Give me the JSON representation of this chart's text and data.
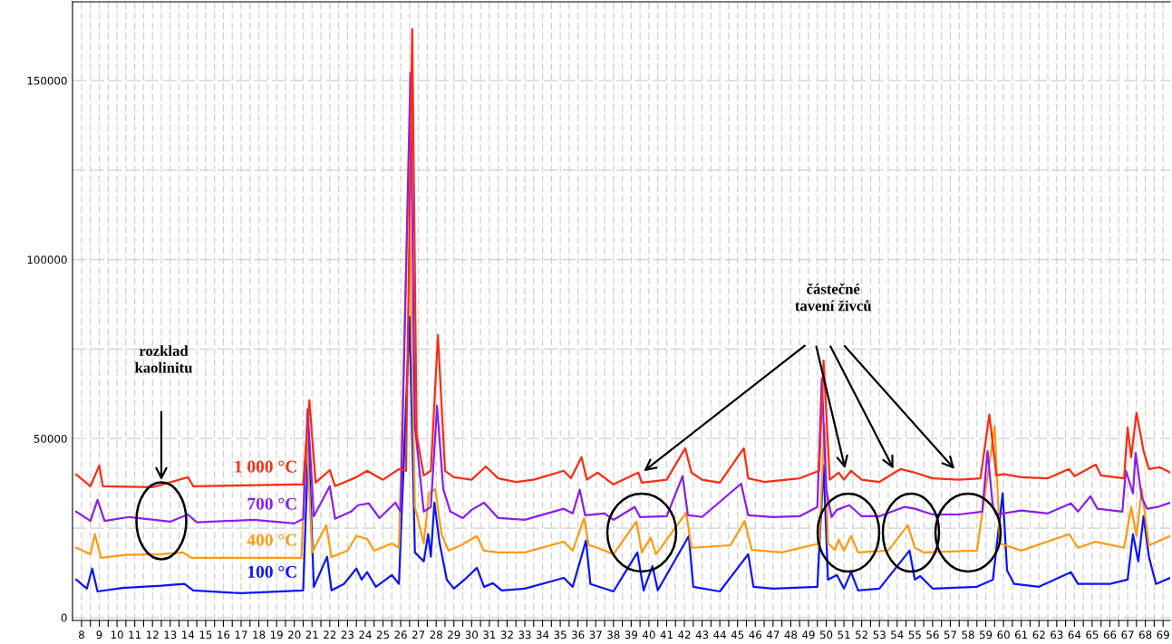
{
  "chart_data": {
    "type": "line",
    "xlim": [
      7.49,
      69.4
    ],
    "ylim": [
      -800,
      172000
    ],
    "xticks": [
      8,
      {
        "value": 8.5,
        "label": null
      },
      9,
      {
        "value": 9.5,
        "label": null
      },
      10,
      {
        "value": 10.5,
        "label": null
      },
      11,
      {
        "value": 11.5,
        "label": null
      },
      12,
      {
        "value": 12.5,
        "label": null
      },
      13,
      {
        "value": 13.5,
        "label": null
      },
      14,
      {
        "value": 14.5,
        "label": null
      },
      15,
      {
        "value": 15.5,
        "label": null
      },
      16,
      {
        "value": 16.5,
        "label": null
      },
      17,
      {
        "value": 17.5,
        "label": null
      },
      18,
      {
        "value": 18.5,
        "label": null
      },
      19,
      {
        "value": 19.5,
        "label": null
      },
      20,
      {
        "value": 20.5,
        "label": null
      },
      21,
      {
        "value": 21.5,
        "label": null
      },
      22,
      {
        "value": 22.5,
        "label": null
      },
      23,
      {
        "value": 23.5,
        "label": null
      },
      24,
      {
        "value": 24.5,
        "label": null
      },
      25,
      {
        "value": 25.5,
        "label": null
      },
      26,
      {
        "value": 26.5,
        "label": null
      },
      27,
      {
        "value": 27.5,
        "label": null
      },
      28,
      {
        "value": 28.5,
        "label": null
      },
      29,
      {
        "value": 29.5,
        "label": null
      },
      30,
      {
        "value": 30.5,
        "label": null
      },
      31,
      {
        "value": 31.5,
        "label": null
      },
      32,
      {
        "value": 32.5,
        "label": null
      },
      33,
      {
        "value": 33.5,
        "label": null
      },
      34,
      {
        "value": 34.5,
        "label": null
      },
      35,
      {
        "value": 35.5,
        "label": null
      },
      36,
      {
        "value": 36.5,
        "label": null
      },
      37,
      {
        "value": 37.5,
        "label": null
      },
      38,
      {
        "value": 38.5,
        "label": null
      },
      39,
      {
        "value": 39.5,
        "label": null
      },
      40,
      {
        "value": 40.5,
        "label": null
      },
      41,
      {
        "value": 41.5,
        "label": null
      },
      42,
      {
        "value": 42.5,
        "label": null
      },
      43,
      {
        "value": 43.5,
        "label": null
      },
      44,
      {
        "value": 44.5,
        "label": null
      },
      45,
      {
        "value": 45.5,
        "label": null
      },
      46,
      {
        "value": 46.5,
        "label": null
      },
      47,
      {
        "value": 47.5,
        "label": null
      },
      48,
      {
        "value": 48.5,
        "label": null
      },
      49,
      {
        "value": 49.5,
        "label": null
      },
      50,
      {
        "value": 50.5,
        "label": null
      },
      51,
      {
        "value": 51.5,
        "label": null
      },
      52,
      {
        "value": 52.5,
        "label": null
      },
      53,
      {
        "value": 53.5,
        "label": null
      },
      54,
      {
        "value": 54.5,
        "label": null
      },
      55,
      {
        "value": 55.5,
        "label": null
      },
      56,
      {
        "value": 56.5,
        "label": null
      },
      57,
      {
        "value": 57.5,
        "label": null
      },
      58,
      {
        "value": 58.5,
        "label": null
      },
      59,
      {
        "value": 59.5,
        "label": null
      },
      60,
      {
        "value": 60.5,
        "label": null
      },
      61,
      {
        "value": 61.5,
        "label": null
      },
      62,
      {
        "value": 62.5,
        "label": null
      },
      63,
      {
        "value": 63.5,
        "label": null
      },
      64,
      {
        "value": 64.5,
        "label": null
      },
      65,
      {
        "value": 65.5,
        "label": null
      },
      66,
      {
        "value": 66.5,
        "label": null
      },
      67,
      {
        "value": 67.5,
        "label": null
      },
      68,
      {
        "value": 68.5,
        "label": null
      },
      69
    ],
    "yticks": [
      0,
      {
        "value": 25000,
        "label": null
      },
      50000,
      {
        "value": 75000,
        "label": null
      },
      100000,
      {
        "value": 125000,
        "label": null
      },
      150000
    ],
    "grid": true,
    "line_style": "solid",
    "marker": "none",
    "annotations": [
      "rozklad\nkaolinitu",
      "částečné\ntavení živců"
    ],
    "series": [
      {
        "name": "1 000 °C",
        "color": "#ff2a10",
        "x": [
          7.7,
          8.5,
          9.0,
          9.2,
          12,
          14.0,
          14.3,
          20.0,
          20.5,
          20.85,
          21.2,
          22.0,
          22.3,
          23.5,
          24.1,
          25,
          25.9,
          26.3,
          26.65,
          26.9,
          27.3,
          27.7,
          28.1,
          28.5,
          29.0,
          30,
          30.8,
          31.5,
          32.5,
          33.5,
          35.2,
          35.6,
          36.2,
          36.5,
          37.1,
          38.0,
          39.4,
          39.6,
          41,
          42.05,
          42.4,
          43,
          44,
          45.35,
          45.6,
          46.5,
          48.5,
          49.6,
          49.85,
          50.2,
          50.7,
          51,
          51.4,
          52,
          53,
          54.2,
          55,
          56,
          57.5,
          58.7,
          59.2,
          59.6,
          60,
          61,
          62.5,
          63.7,
          64,
          65.2,
          65.5,
          66.8,
          67.0,
          67.2,
          67.5,
          67.9,
          68.2,
          68.8,
          69.4
        ],
        "values": [
          40000,
          36700,
          42500,
          36700,
          36400,
          39200,
          36700,
          37200,
          37200,
          60700,
          37700,
          41200,
          36700,
          39200,
          41000,
          38500,
          41500,
          41000,
          164400,
          51100,
          39700,
          41000,
          78900,
          41000,
          39200,
          38500,
          42200,
          38900,
          37900,
          38500,
          41000,
          38900,
          44800,
          38500,
          40500,
          37200,
          40500,
          37700,
          38500,
          47300,
          40500,
          38500,
          37700,
          47300,
          38900,
          37900,
          38900,
          41000,
          71800,
          38500,
          40500,
          38500,
          41000,
          38500,
          37900,
          41500,
          40500,
          38900,
          38500,
          38900,
          56700,
          39700,
          40100,
          39200,
          38900,
          41500,
          39500,
          42700,
          39700,
          38900,
          53100,
          44800,
          57200,
          46500,
          41500,
          42000,
          40500
        ]
      },
      {
        "name": "700 °C",
        "color": "#8a1ef0",
        "x": [
          7.7,
          8.5,
          8.9,
          9.3,
          10.7,
          13,
          14.0,
          14.5,
          17.7,
          20.0,
          20.5,
          20.75,
          21.1,
          22.0,
          22.3,
          23.2,
          23.6,
          24.2,
          24.8,
          25.7,
          26.0,
          26.55,
          26.8,
          27.3,
          27.7,
          28.05,
          28.4,
          28.8,
          29.5,
          30,
          30.7,
          31.5,
          33,
          35.2,
          35.7,
          36.1,
          36.4,
          37.5,
          38.0,
          39.2,
          39.5,
          41,
          41.9,
          42.2,
          43,
          45.2,
          45.6,
          47,
          48.5,
          49.5,
          49.75,
          50.0,
          50.3,
          50.6,
          51.3,
          52,
          53,
          54.4,
          55,
          56,
          57.5,
          58.8,
          59.1,
          59.4,
          59.6,
          61,
          62.5,
          63.8,
          64.2,
          64.9,
          65.3,
          66.7,
          66.9,
          67.1,
          67.3,
          67.45,
          67.8,
          68.1,
          68.7,
          69.4
        ],
        "values": [
          29600,
          27000,
          32900,
          27000,
          28100,
          26800,
          28800,
          26600,
          27300,
          26300,
          27600,
          58200,
          28300,
          36700,
          27600,
          29600,
          31400,
          31900,
          27800,
          32100,
          29600,
          152300,
          53600,
          29600,
          30900,
          59200,
          35900,
          29600,
          27800,
          30100,
          32100,
          27800,
          27300,
          30400,
          29100,
          35700,
          28600,
          29100,
          27300,
          30900,
          28100,
          28300,
          39500,
          28600,
          28100,
          37400,
          28600,
          28100,
          28300,
          30900,
          66800,
          35900,
          28100,
          30100,
          31400,
          28300,
          28300,
          30900,
          30400,
          28800,
          28800,
          29600,
          46500,
          30900,
          28800,
          29900,
          29100,
          31900,
          29600,
          33900,
          30400,
          29600,
          41000,
          37900,
          34700,
          46000,
          33400,
          30400,
          30900,
          32100
        ]
      },
      {
        "name": "400 °C",
        "color": "#ff9a10",
        "x": [
          7.7,
          8.5,
          8.75,
          9.1,
          10.5,
          12.5,
          13.7,
          14.2,
          20.4,
          20.7,
          21.0,
          21.8,
          22.1,
          23.0,
          23.5,
          24.1,
          24.5,
          25.5,
          25.9,
          26.45,
          26.8,
          27.3,
          27.6,
          27.95,
          28.3,
          28.7,
          29.4,
          30.3,
          30.7,
          31.5,
          33,
          35.2,
          35.7,
          36.35,
          36.6,
          37,
          38,
          39.3,
          39.6,
          40.1,
          40.4,
          42.1,
          42.4,
          44.6,
          45.4,
          45.8,
          47.5,
          49.6,
          49.9,
          50.1,
          50.5,
          50.7,
          51.0,
          51.4,
          51.8,
          53.5,
          54.6,
          55.0,
          55.5,
          58.5,
          59.5,
          59.8,
          61,
          63.7,
          64.2,
          65.2,
          66.8,
          67.2,
          67.5,
          67.8,
          68.2,
          69.4
        ],
        "values": [
          19500,
          17700,
          23300,
          16700,
          17500,
          17700,
          18200,
          16700,
          16700,
          51100,
          18200,
          25800,
          16900,
          18700,
          22800,
          22000,
          18700,
          20700,
          19500,
          125000,
          30900,
          20700,
          34700,
          35900,
          23300,
          18700,
          20200,
          22800,
          18700,
          18200,
          18200,
          21200,
          18700,
          27800,
          20200,
          19700,
          17700,
          26800,
          18200,
          22300,
          17700,
          29300,
          19500,
          20200,
          27000,
          18900,
          18200,
          20700,
          54100,
          20700,
          18900,
          21800,
          18700,
          22800,
          18200,
          18700,
          25800,
          19500,
          18200,
          18700,
          53600,
          20700,
          18700,
          23300,
          19500,
          21200,
          19500,
          30900,
          22800,
          35900,
          20200,
          22800
        ]
      },
      {
        "name": "100 °C",
        "color": "#0a14ff",
        "x": [
          7.7,
          8.3,
          8.6,
          8.9,
          10.3,
          12.5,
          13.8,
          14.3,
          17,
          20.5,
          20.8,
          21.1,
          21.85,
          22.1,
          22.8,
          23.5,
          23.8,
          24.1,
          24.6,
          25.5,
          25.9,
          26.5,
          26.8,
          27.3,
          27.55,
          27.7,
          27.9,
          28.2,
          28.6,
          29.0,
          29.6,
          30.3,
          30.7,
          31.2,
          31.7,
          33,
          35.2,
          35.7,
          36.45,
          36.7,
          38,
          39.35,
          39.7,
          40.2,
          40.5,
          42.25,
          42.5,
          44,
          45.6,
          45.9,
          47,
          49.5,
          49.85,
          50.1,
          50.6,
          51.0,
          51.4,
          51.8,
          53,
          54.7,
          55.0,
          55.3,
          56,
          58.5,
          59.4,
          59.95,
          60.2,
          60.6,
          62,
          63.8,
          64.2,
          66,
          67.0,
          67.3,
          67.6,
          67.9,
          68.2,
          68.6,
          69.4
        ],
        "values": [
          10600,
          8100,
          13700,
          7300,
          8300,
          8900,
          9400,
          7600,
          6800,
          7600,
          50000,
          8600,
          17000,
          7600,
          9400,
          13700,
          10600,
          12700,
          8600,
          11900,
          9400,
          84000,
          18200,
          15700,
          23300,
          17000,
          32100,
          20700,
          10600,
          8100,
          10600,
          13900,
          8600,
          9600,
          7600,
          8100,
          11100,
          8600,
          21500,
          9400,
          7300,
          18200,
          7600,
          14400,
          7600,
          22800,
          8600,
          7300,
          17700,
          8600,
          8100,
          8600,
          42700,
          10600,
          11900,
          8100,
          12700,
          7600,
          8100,
          18700,
          10600,
          11600,
          8100,
          8600,
          10600,
          34700,
          13200,
          9400,
          8600,
          12700,
          9400,
          9400,
          10600,
          23300,
          15700,
          28300,
          17000,
          9400,
          11100
        ]
      }
    ]
  }
}
